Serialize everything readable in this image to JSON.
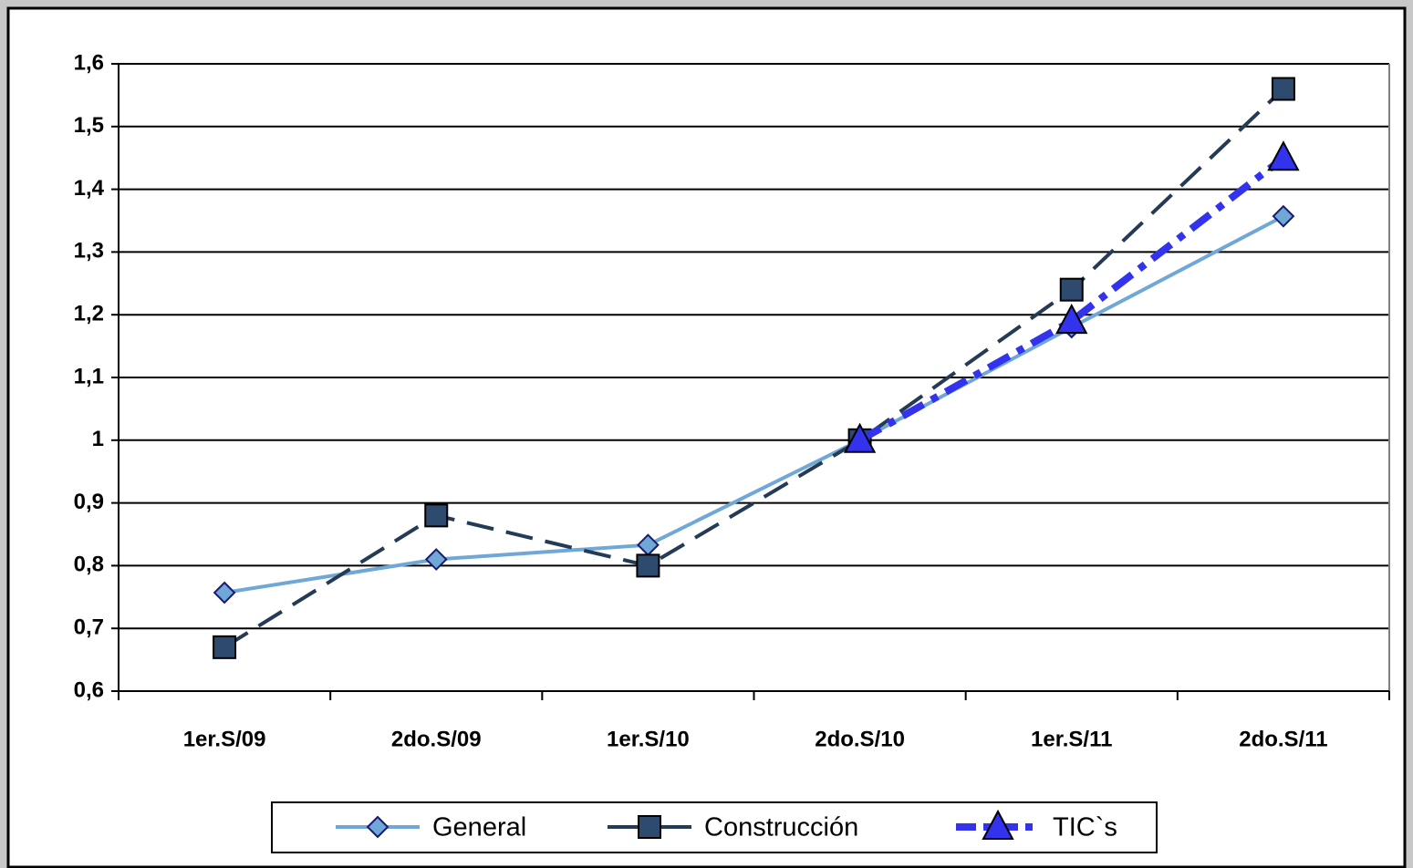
{
  "chart_data": {
    "type": "line",
    "categories": [
      "1er.S/09",
      "2do.S/09",
      "1er.S/10",
      "2do.S/10",
      "1er.S/11",
      "2do.S/11"
    ],
    "series": [
      {
        "name": "General",
        "color": "#6fa8d6",
        "marker": "diamond",
        "line_style": "solid",
        "values": [
          0.757,
          0.81,
          0.833,
          1.0,
          1.18,
          1.357
        ]
      },
      {
        "name": "Construcción",
        "color": "#243b55",
        "marker": "square",
        "line_style": "dashed",
        "values": [
          0.67,
          0.88,
          0.8,
          1.0,
          1.24,
          1.56
        ]
      },
      {
        "name": "TIC`s",
        "color": "#3333ee",
        "marker": "triangle",
        "line_style": "dash-dot",
        "values": [
          null,
          null,
          null,
          1.0,
          1.19,
          1.45
        ]
      }
    ],
    "ylim": [
      0.6,
      1.6
    ],
    "yticks": [
      {
        "value": 0.6,
        "label": "0,6"
      },
      {
        "value": 0.7,
        "label": "0,7"
      },
      {
        "value": 0.8,
        "label": "0,8"
      },
      {
        "value": 0.9,
        "label": "0,9"
      },
      1,
      {
        "value": 1.1,
        "label": "1,1"
      },
      {
        "value": 1.2,
        "label": "1,2"
      },
      {
        "value": 1.3,
        "label": "1,3"
      },
      {
        "value": 1.4,
        "label": "1,4"
      },
      {
        "value": 1.5,
        "label": "1,5"
      },
      {
        "value": 1.6,
        "label": "1,6"
      }
    ],
    "grid": true,
    "legend": "bottom"
  }
}
